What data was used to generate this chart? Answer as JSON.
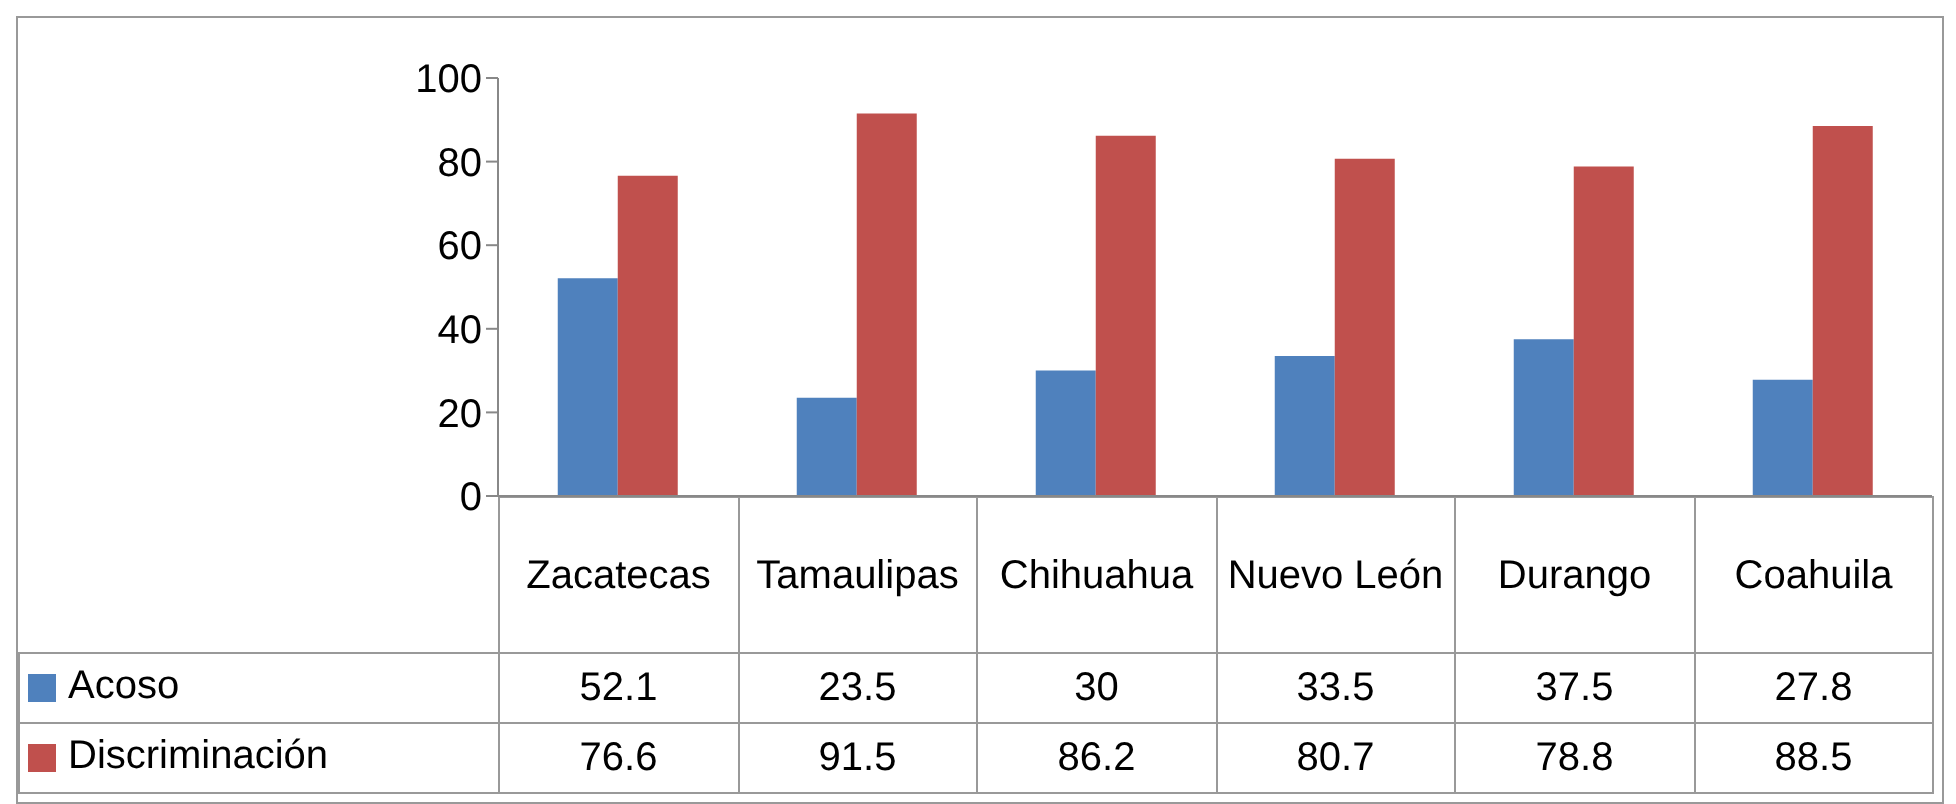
{
  "chart_data": {
    "type": "bar",
    "categories": [
      "Zacatecas",
      "Tamaulipas",
      "Chihuahua",
      "Nuevo León",
      "Durango",
      "Coahuila"
    ],
    "series": [
      {
        "name": "Acoso",
        "color": "#4f81bd",
        "values": [
          52.1,
          23.5,
          30,
          33.5,
          37.5,
          27.8
        ]
      },
      {
        "name": "Discriminación",
        "color": "#c0504d",
        "values": [
          76.6,
          91.5,
          86.2,
          80.7,
          78.8,
          88.5
        ]
      }
    ],
    "ylim": [
      0,
      100
    ],
    "yticks": [
      0,
      20,
      40,
      60,
      80,
      100
    ],
    "grid": false,
    "legend": "bottom left",
    "data_labels": true
  }
}
